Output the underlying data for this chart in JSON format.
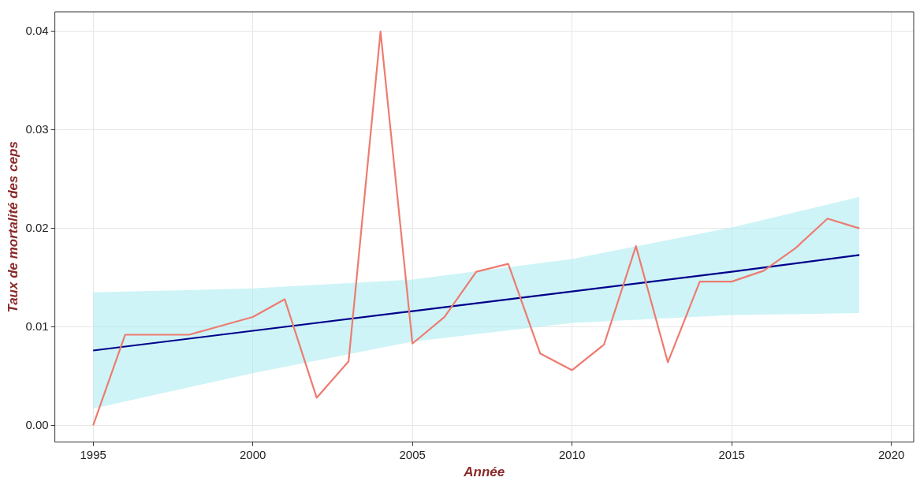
{
  "chart_data": {
    "type": "line",
    "xlabel": "Année",
    "ylabel": "Taux de mortalité des ceps",
    "x": [
      1995,
      1996,
      1997,
      1998,
      1999,
      2000,
      2001,
      2002,
      2003,
      2004,
      2005,
      2006,
      2007,
      2008,
      2009,
      2010,
      2011,
      2012,
      2013,
      2014,
      2015,
      2016,
      2017,
      2018,
      2019
    ],
    "series": [
      {
        "color": "#ee7b70",
        "values": [
          0,
          0.0092,
          0.0092,
          0.0092,
          0.0101,
          0.011,
          0.0128,
          0.0028,
          0.0065,
          0.04,
          0.0083,
          0.011,
          0.0156,
          0.0164,
          0.0073,
          0.0056,
          0.0082,
          0.0182,
          0.0064,
          0.0146,
          0.0146,
          0.0157,
          0.018,
          0.021,
          0.02
        ]
      },
      {
        "color": "#00008b",
        "x": [
          1995,
          2000,
          2005,
          2010,
          2015,
          2019
        ],
        "values": [
          0.0076,
          0.0096,
          0.0116,
          0.0136,
          0.0156,
          0.0173
        ],
        "lower": [
          0.0017,
          0.0053,
          0.0085,
          0.0104,
          0.0112,
          0.0114
        ],
        "upper": [
          0.0135,
          0.0139,
          0.0148,
          0.0169,
          0.0201,
          0.0232
        ]
      }
    ],
    "xlim": [
      1993.8,
      2020.7
    ],
    "xticks": [
      1995,
      2000,
      2005,
      2010,
      2015,
      2020
    ],
    "ylim": [
      -0.0017,
      0.042
    ],
    "yticks": [
      {
        "value": 0,
        "label": "0.00"
      },
      {
        "value": 0.01,
        "label": "0.01"
      },
      {
        "value": 0.02,
        "label": "0.02"
      },
      {
        "value": 0.03,
        "label": "0.03"
      },
      {
        "value": 0.04,
        "label": "0.04"
      }
    ],
    "grid": true,
    "marker": "none",
    "line_style": "solid"
  }
}
